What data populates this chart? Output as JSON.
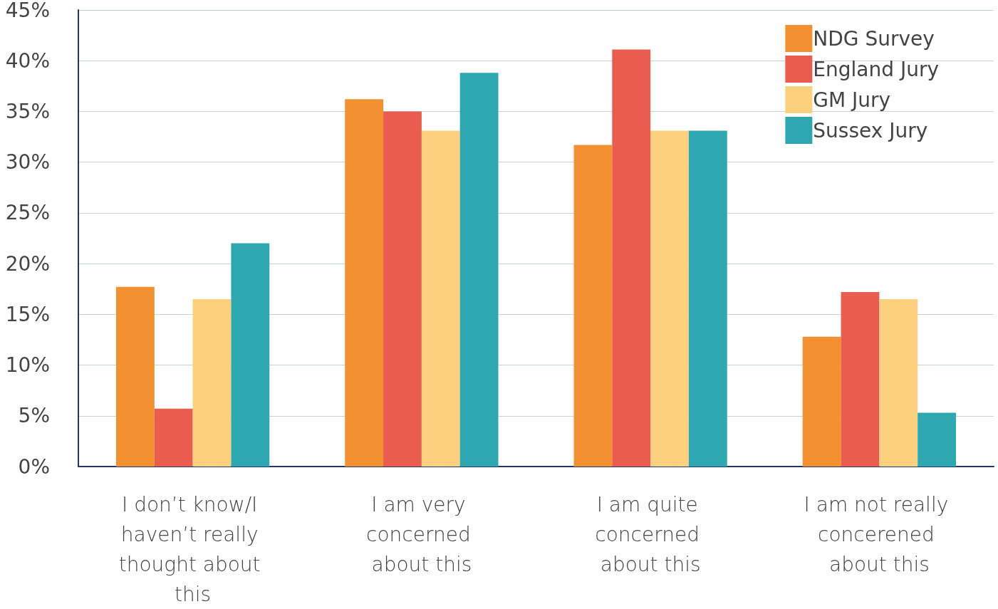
{
  "chart_data": {
    "type": "bar",
    "categories": [
      "I don’t know/I haven’t really thought about this",
      "I am very concerned about this",
      "I am quite concerned about this",
      "I am not really concerened about this"
    ],
    "series": [
      {
        "name": "NDG Survey",
        "color": "#f39130",
        "values": [
          17.7,
          36.2,
          31.7,
          12.8
        ]
      },
      {
        "name": "England Jury",
        "color": "#e95c4e",
        "values": [
          5.7,
          35.0,
          41.1,
          17.2
        ]
      },
      {
        "name": "GM Jury",
        "color": "#fbd17d",
        "values": [
          16.5,
          33.1,
          33.1,
          16.5
        ]
      },
      {
        "name": "Sussex Jury",
        "color": "#2ea8b0",
        "values": [
          22.0,
          38.8,
          33.1,
          5.3
        ]
      }
    ],
    "ylim": [
      0,
      45
    ],
    "yticks": [
      {
        "value": 0,
        "label": "0%"
      },
      {
        "value": 5,
        "label": "5%"
      },
      {
        "value": 10,
        "label": "10%"
      },
      {
        "value": 15,
        "label": "15%"
      },
      {
        "value": 20,
        "label": "20%"
      },
      {
        "value": 25,
        "label": "25%"
      },
      {
        "value": 30,
        "label": "30%"
      },
      {
        "value": 35,
        "label": "35%"
      },
      {
        "value": 40,
        "label": "40%"
      },
      {
        "value": 45,
        "label": "45%"
      }
    ],
    "grid": "y",
    "legend": "top right"
  }
}
